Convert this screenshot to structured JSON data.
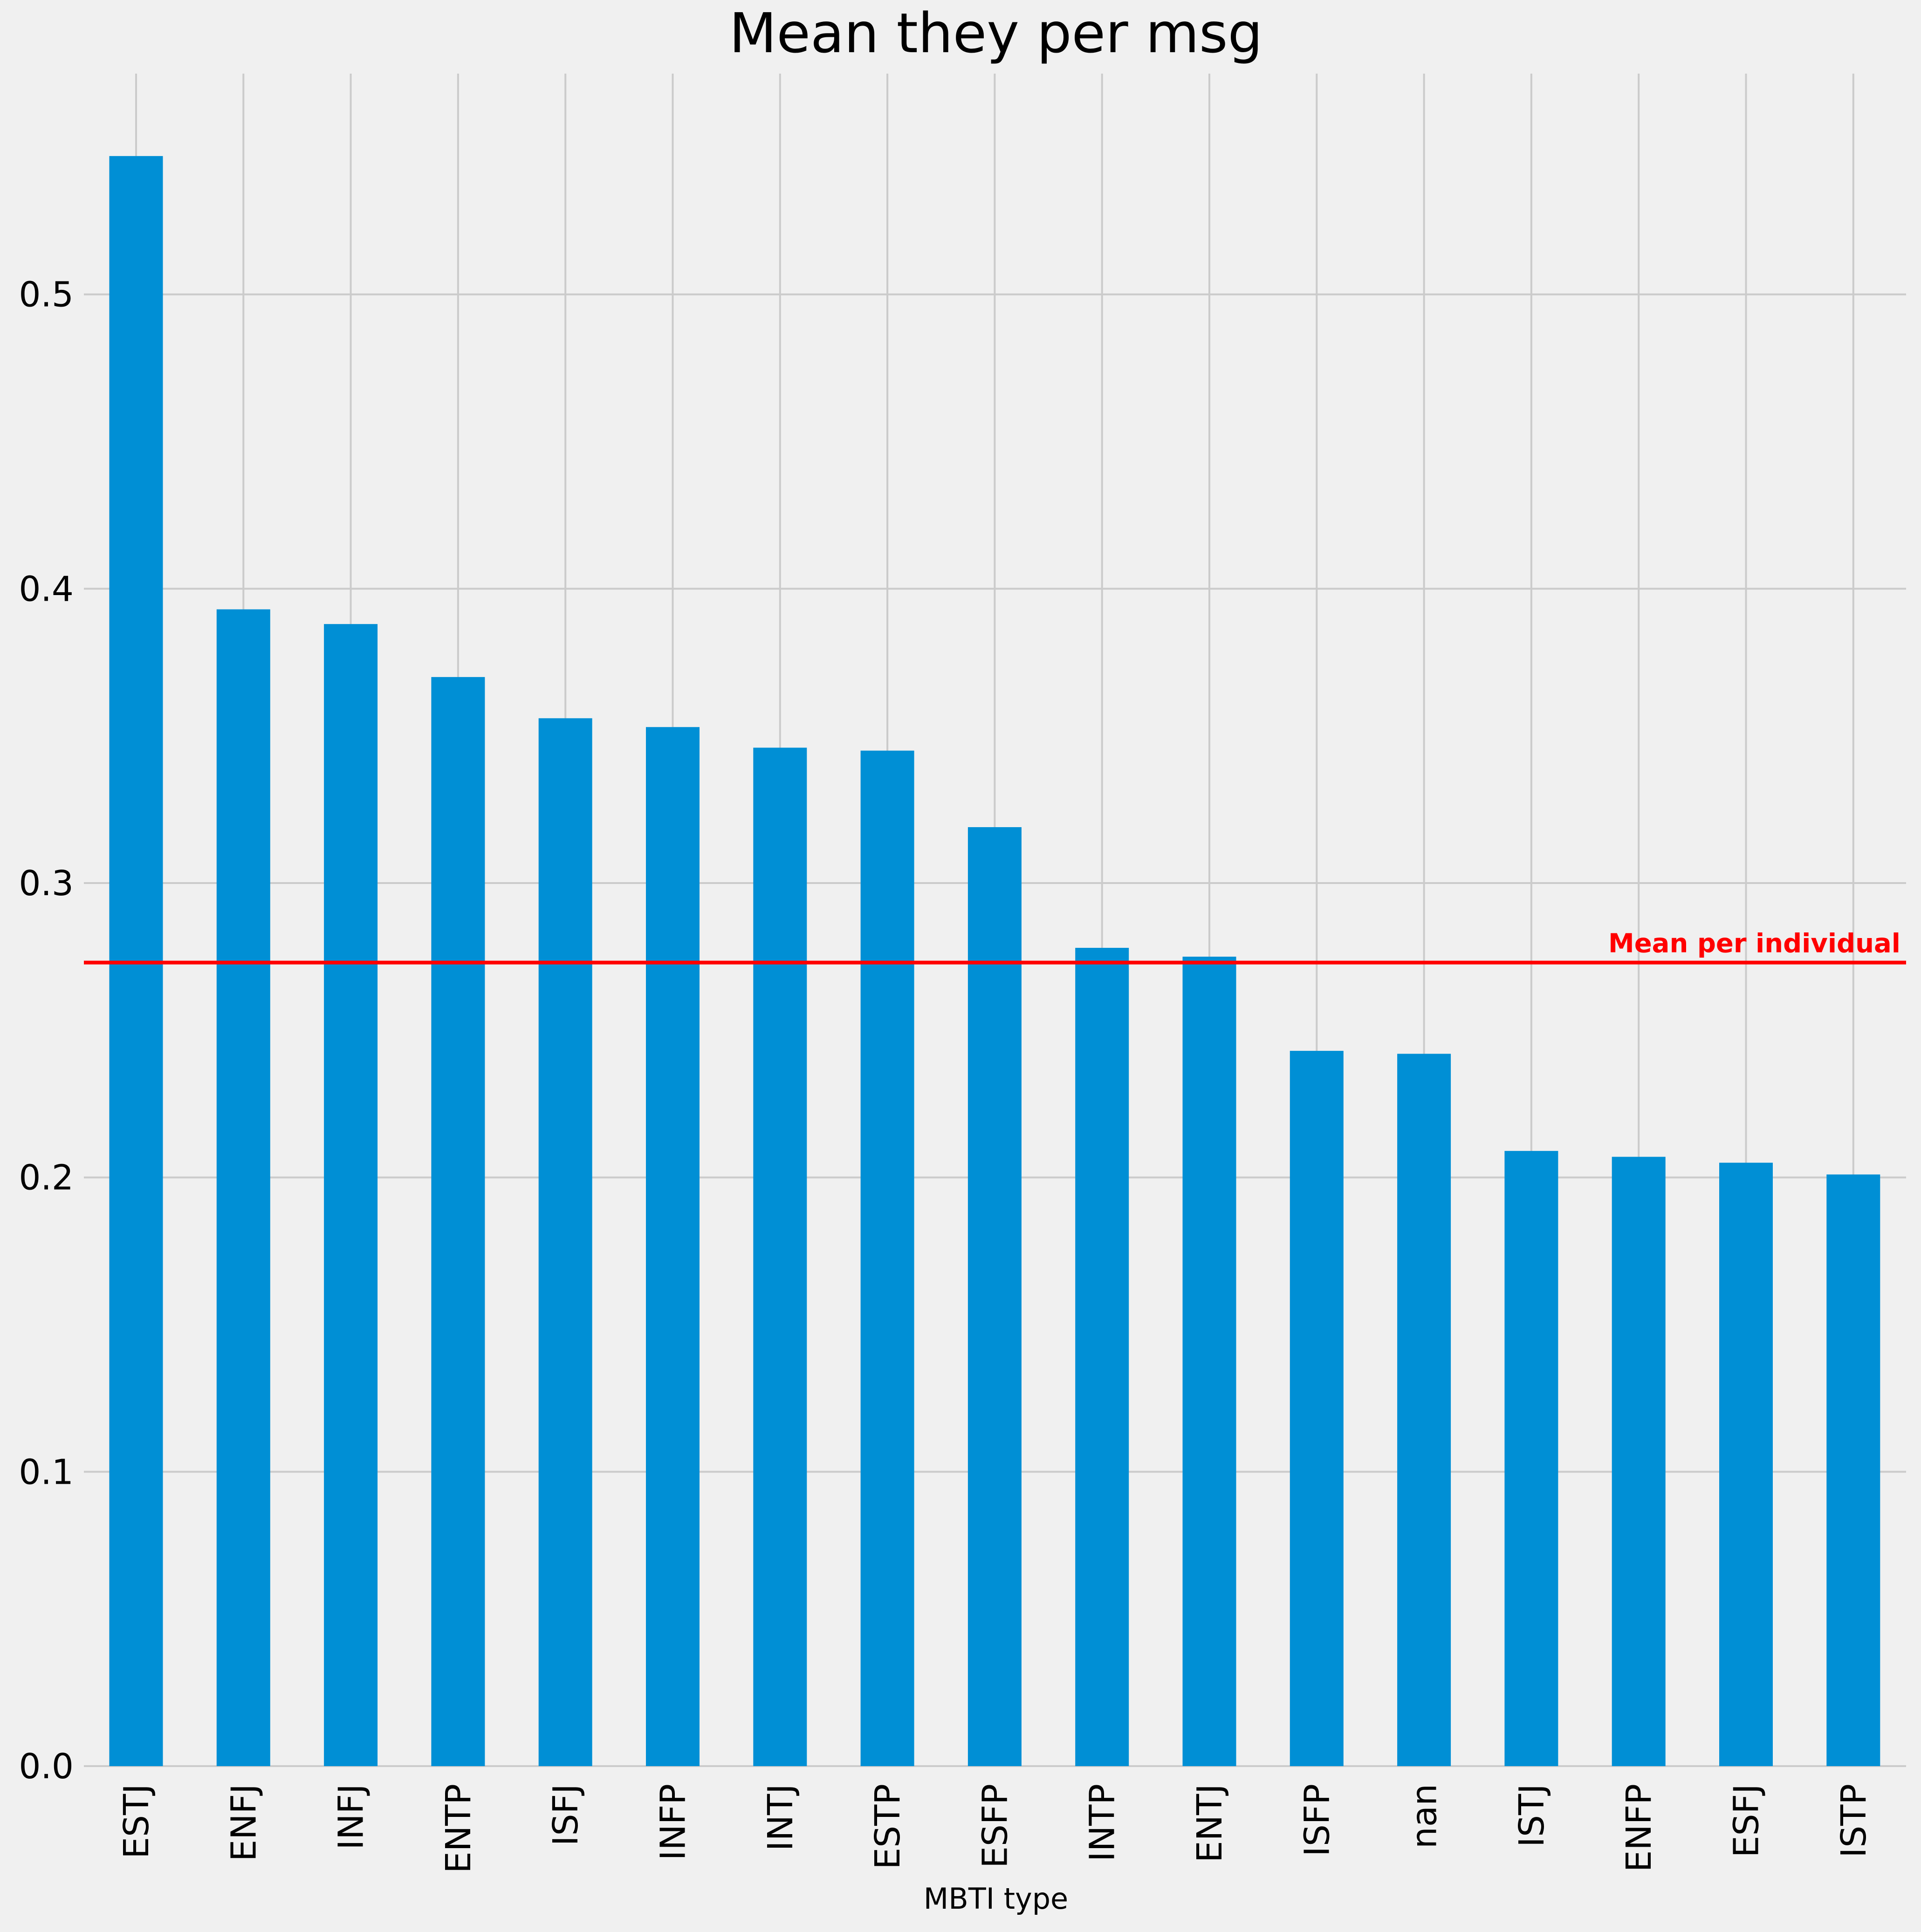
{
  "chart_data": {
    "type": "bar",
    "title": "Mean they per msg",
    "xlabel": "MBTI type",
    "ylabel": "",
    "categories": [
      "ESTJ",
      "ENFJ",
      "INFJ",
      "ENTP",
      "ISFJ",
      "INFP",
      "INTJ",
      "ESTP",
      "ESFP",
      "INTP",
      "ENTJ",
      "ISFP",
      "nan",
      "ISTJ",
      "ENFP",
      "ESFJ",
      "ISTP"
    ],
    "values": [
      0.547,
      0.393,
      0.388,
      0.37,
      0.356,
      0.353,
      0.346,
      0.345,
      0.319,
      0.278,
      0.275,
      0.243,
      0.242,
      0.209,
      0.207,
      0.205,
      0.201
    ],
    "ylim": [
      0,
      0.575
    ],
    "yticks": [
      0.0,
      0.1,
      0.2,
      0.3,
      0.4,
      0.5
    ],
    "ytick_labels": [
      "0.0",
      "0.1",
      "0.2",
      "0.3",
      "0.4",
      "0.5"
    ],
    "grid": true,
    "bar_color": "#008fd5",
    "reference_line": {
      "value": 0.273,
      "label": "Mean per individual",
      "color": "#ff0000"
    }
  }
}
